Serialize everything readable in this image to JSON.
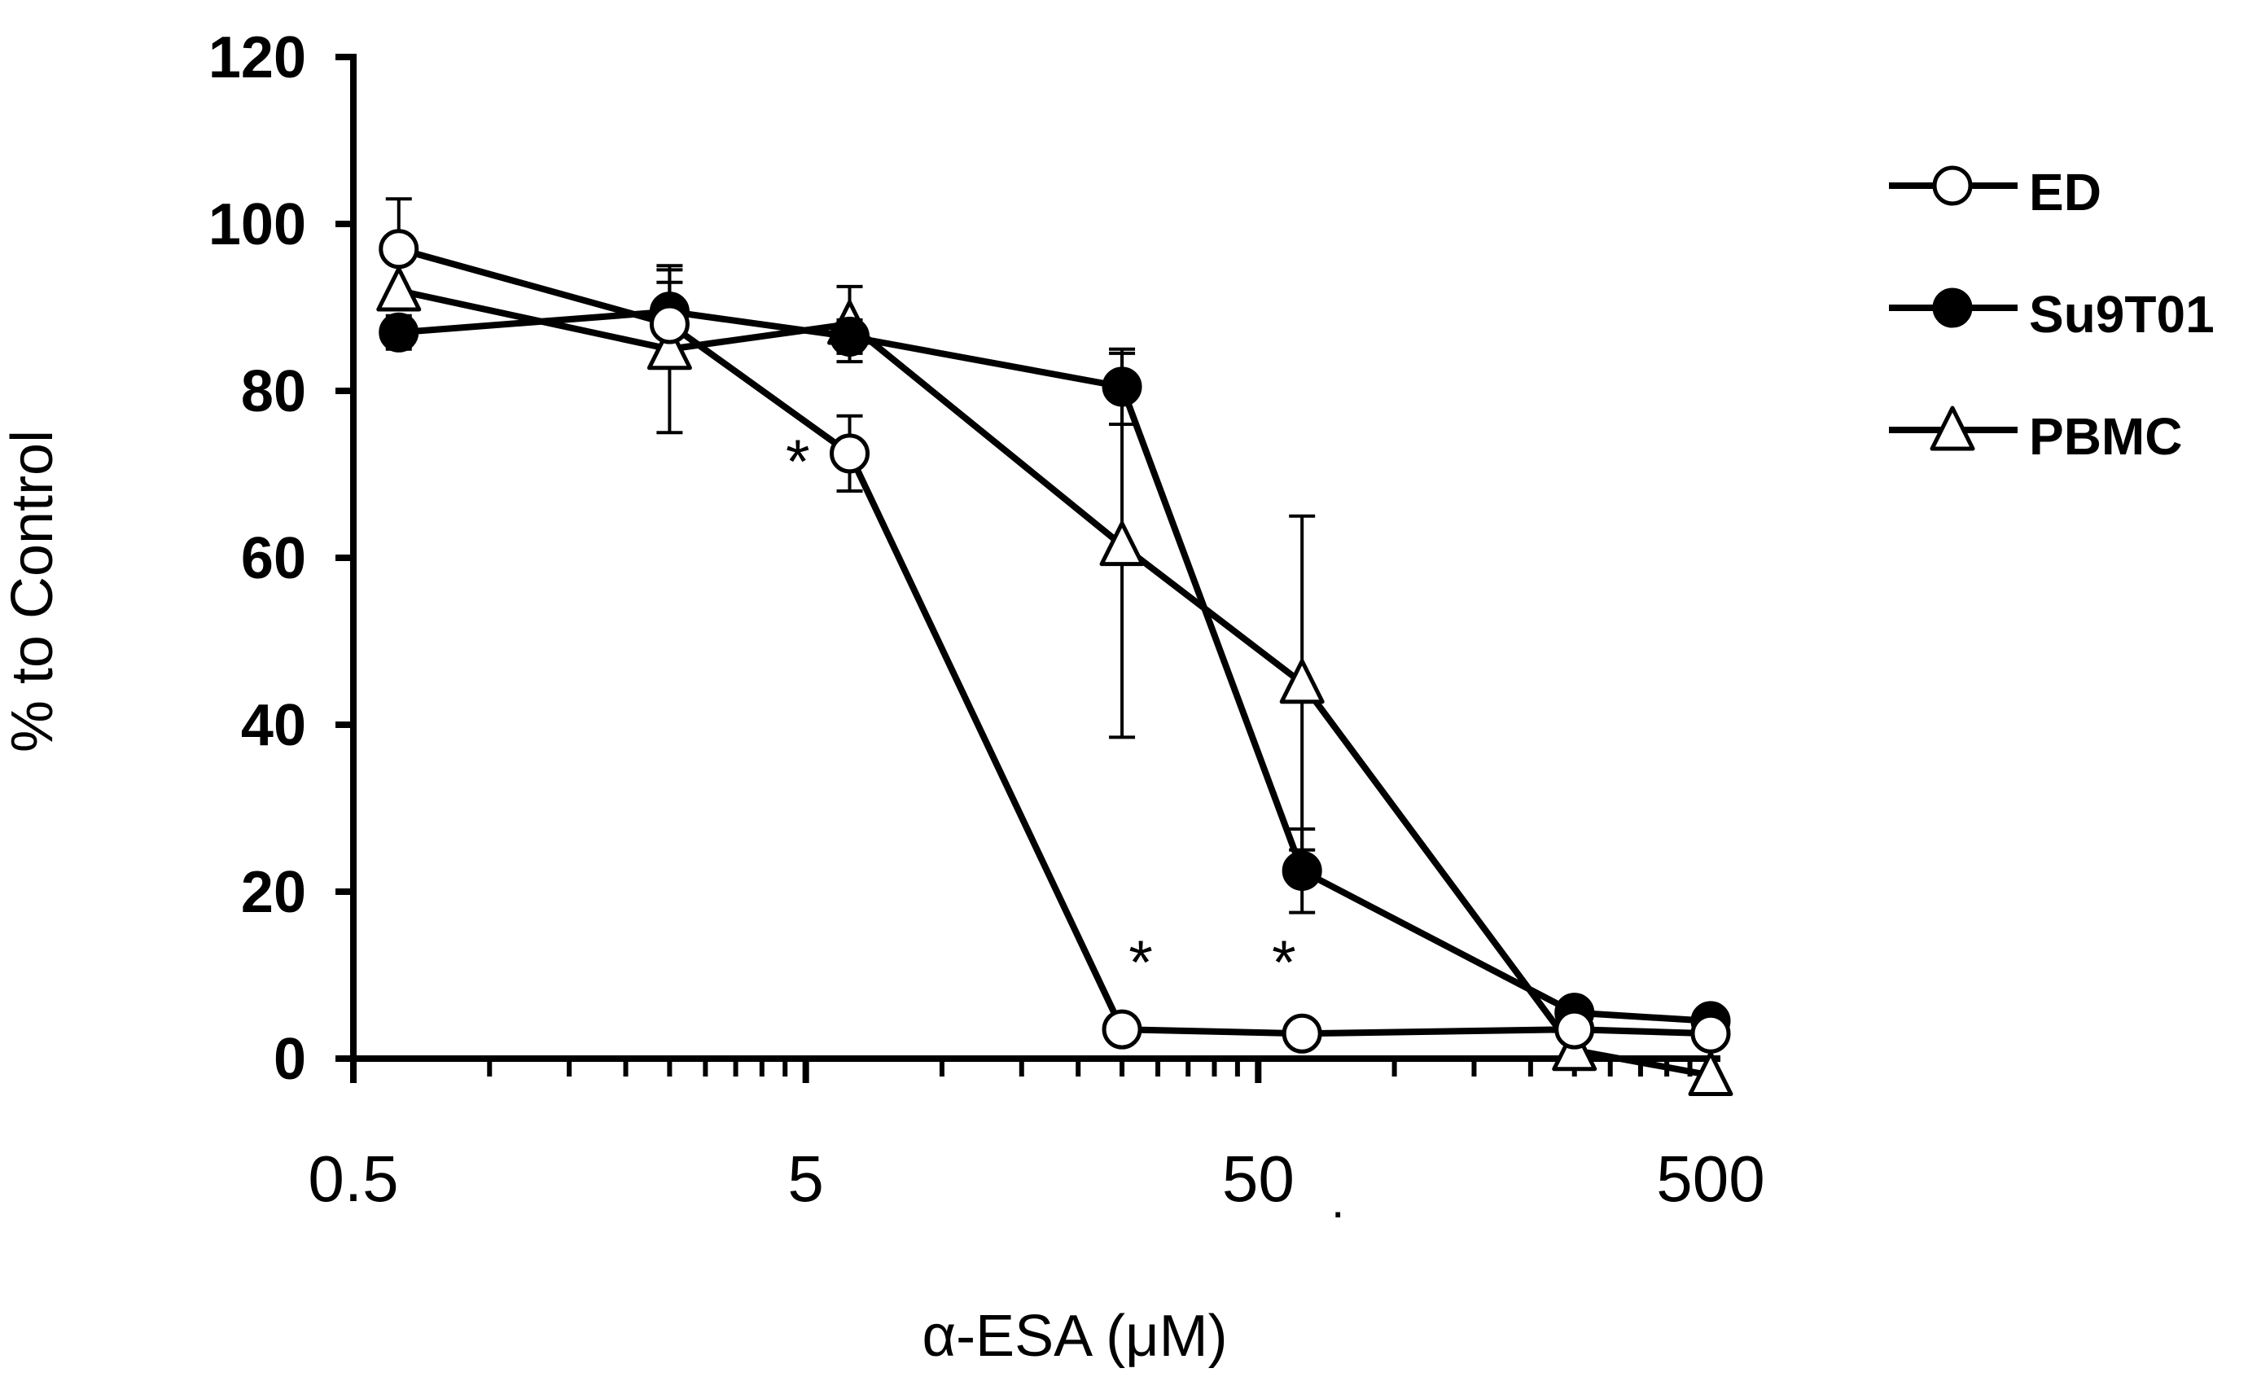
{
  "chart_data": {
    "type": "line",
    "xlabel": "α-ESA (μM)",
    "ylabel": "% to Control",
    "xscale": "log",
    "xlim": [
      0.5,
      500
    ],
    "ylim": [
      0,
      120
    ],
    "x_ticks": [
      0.5,
      5,
      50,
      500
    ],
    "x_tick_labels": [
      "0.5",
      "5",
      "50",
      "500"
    ],
    "y_ticks": [
      0,
      20,
      40,
      60,
      80,
      100,
      120
    ],
    "y_tick_labels": [
      "0",
      "20",
      "40",
      "60",
      "80",
      "100",
      "120"
    ],
    "legend_position": "right",
    "grid": false,
    "x": [
      0.63,
      2.5,
      6.25,
      25,
      62.5,
      250,
      500
    ],
    "series": [
      {
        "name": "ED",
        "marker": "open-circle",
        "values": [
          97,
          88,
          72.5,
          3.5,
          3,
          3.5,
          3
        ],
        "error": [
          6,
          5,
          4.5,
          0,
          0,
          0,
          0
        ]
      },
      {
        "name": "Su9T01",
        "marker": "filled-circle",
        "values": [
          87,
          89.5,
          86.5,
          80.5,
          22.5,
          5.5,
          4.5
        ],
        "error": [
          2,
          5,
          2,
          4.5,
          5,
          0,
          0
        ]
      },
      {
        "name": "PBMC",
        "marker": "open-triangle",
        "values": [
          92,
          85,
          88,
          61.5,
          45,
          1,
          -2
        ],
        "error": [
          0,
          10,
          4.5,
          23,
          20,
          0,
          0
        ]
      }
    ],
    "annotations": [
      {
        "text": "*",
        "x": 4.8,
        "y": 69
      },
      {
        "text": "*",
        "x": 27.5,
        "y": 9
      },
      {
        "text": "*",
        "x": 57,
        "y": 9
      }
    ],
    "stray_mark": {
      "text": ".",
      "x": 75,
      "y": -19
    }
  }
}
